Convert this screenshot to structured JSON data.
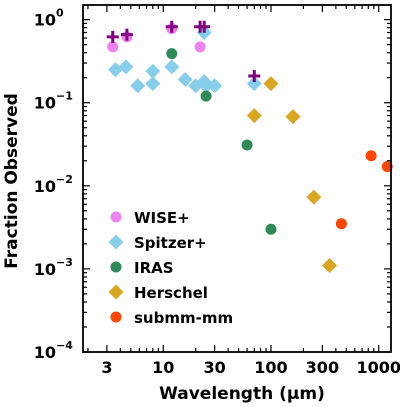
{
  "chart_data": {
    "type": "scatter",
    "xlabel": "Wavelength (µm)",
    "ylabel": "Fraction Observed",
    "x_scale": "log",
    "y_scale": "log",
    "xlim": [
      1.8,
      1300
    ],
    "ylim": [
      0.0001,
      1.5
    ],
    "x_ticks": [
      {
        "value": 3,
        "label": "3"
      },
      {
        "value": 10,
        "label": "10"
      },
      {
        "value": 30,
        "label": "30"
      },
      {
        "value": 100,
        "label": "100"
      },
      {
        "value": 300,
        "label": "300"
      },
      {
        "value": 1000,
        "label": "1000"
      }
    ],
    "y_ticks": [
      {
        "value": 0.0001,
        "base": "10",
        "exp": "−4"
      },
      {
        "value": 0.001,
        "base": "10",
        "exp": "−3"
      },
      {
        "value": 0.01,
        "base": "10",
        "exp": "−2"
      },
      {
        "value": 0.1,
        "base": "10",
        "exp": "−1"
      },
      {
        "value": 1,
        "base": "10",
        "exp": "0"
      }
    ],
    "legend_position": "lower-left",
    "series": [
      {
        "name": "WISE+",
        "marker": "circle",
        "color": "#ee82ee",
        "points": [
          [
            3.4,
            0.47
          ],
          [
            4.6,
            0.62
          ],
          [
            12,
            0.78
          ],
          [
            22,
            0.47
          ]
        ]
      },
      {
        "name": "Spitzer+",
        "marker": "diamond",
        "color": "#87ceeb",
        "points": [
          [
            3.6,
            0.25
          ],
          [
            4.5,
            0.27
          ],
          [
            5.8,
            0.16
          ],
          [
            8,
            0.24
          ],
          [
            8,
            0.17
          ],
          [
            12,
            0.27
          ],
          [
            16,
            0.19
          ],
          [
            20,
            0.16
          ],
          [
            24,
            0.18
          ],
          [
            24,
            0.7
          ],
          [
            25,
            0.16
          ],
          [
            30,
            0.16
          ],
          [
            70,
            0.17
          ]
        ]
      },
      {
        "name": "IRAS",
        "marker": "circle",
        "color": "#2e8b57",
        "points": [
          [
            12,
            0.39
          ],
          [
            25,
            0.12
          ],
          [
            60,
            0.031
          ],
          [
            100,
            0.003
          ]
        ]
      },
      {
        "name": "Herschel",
        "marker": "diamond",
        "color": "#daa520",
        "points": [
          [
            70,
            0.07
          ],
          [
            100,
            0.17
          ],
          [
            160,
            0.068
          ],
          [
            250,
            0.0073
          ],
          [
            350,
            0.0011
          ]
        ]
      },
      {
        "name": "submm-mm",
        "marker": "circle",
        "color": "#ff4500",
        "points": [
          [
            450,
            0.0035
          ],
          [
            850,
            0.023
          ],
          [
            1200,
            0.017
          ]
        ]
      },
      {
        "name": "",
        "marker": "plus",
        "color": "#800080",
        "points": [
          [
            3.4,
            0.62
          ],
          [
            4.6,
            0.66
          ],
          [
            12,
            0.82
          ],
          [
            22,
            0.82
          ],
          [
            24,
            0.82
          ],
          [
            70,
            0.21
          ]
        ]
      }
    ],
    "axis_color": "#000000"
  }
}
